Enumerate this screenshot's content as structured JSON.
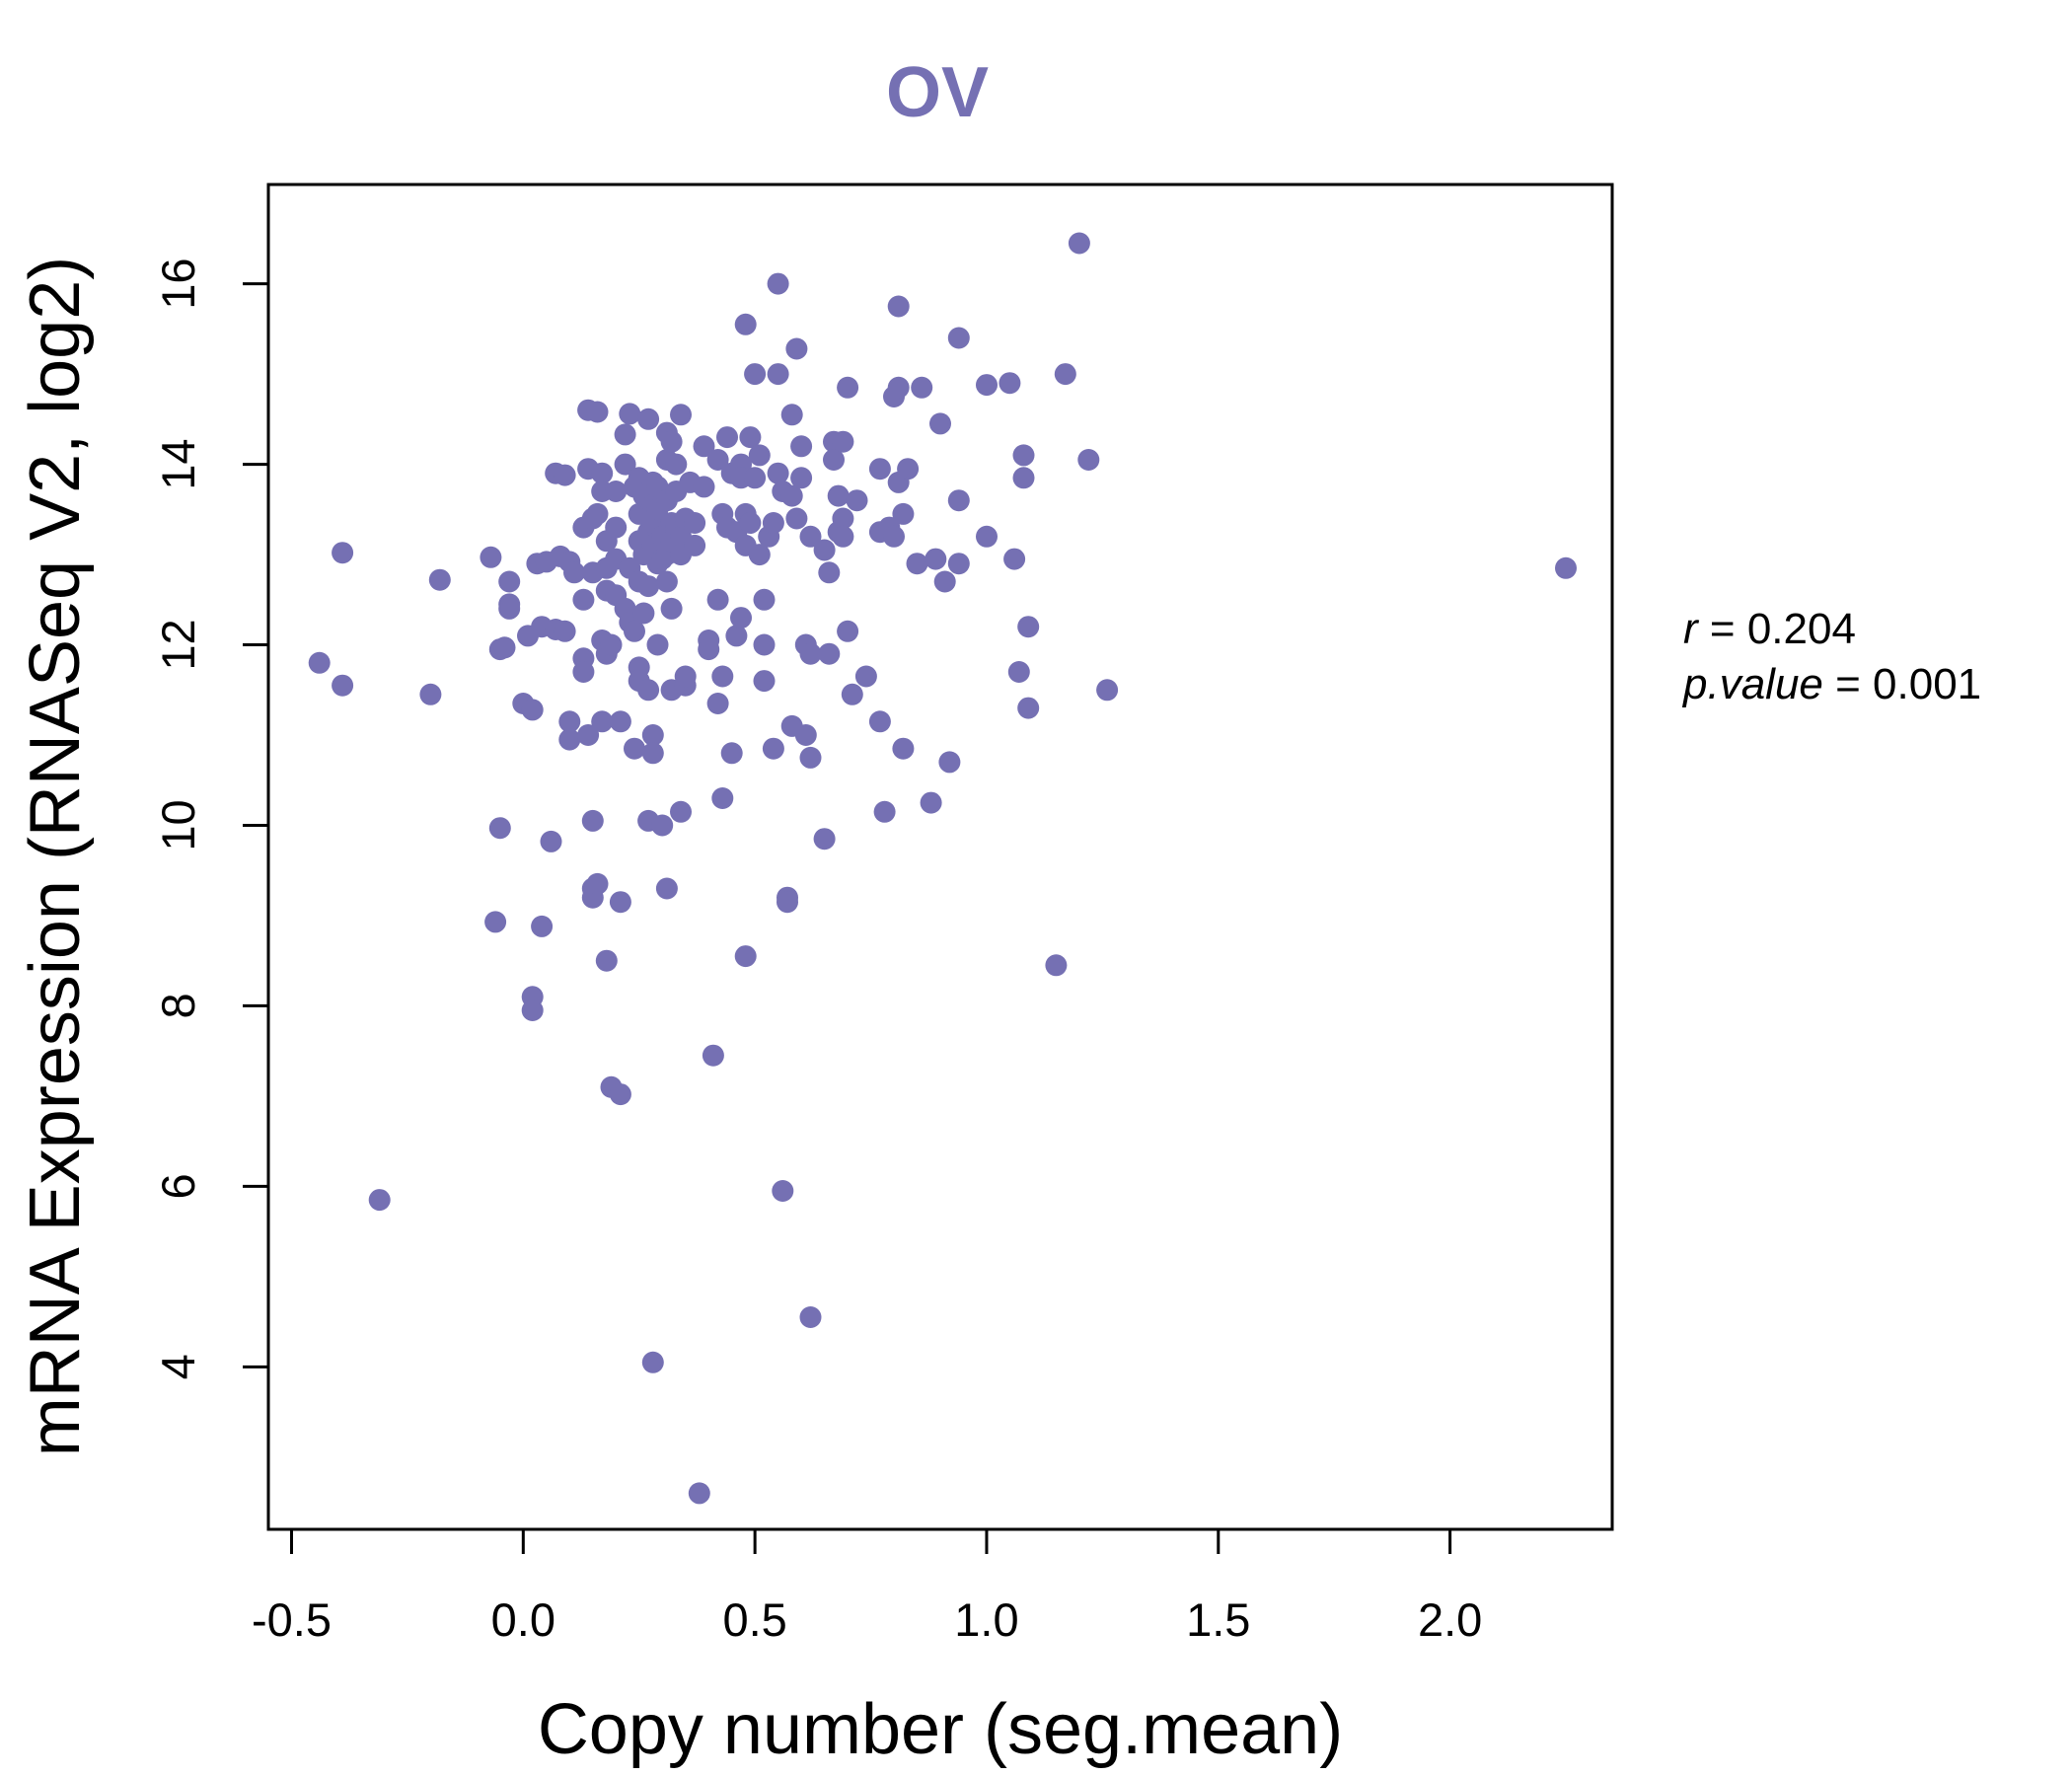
{
  "chart_data": {
    "type": "scatter",
    "title": "OV",
    "xlabel": "Copy number (seg.mean)",
    "ylabel": "mRNA Expression (RNASeq V2, log2)",
    "xlim": [
      -0.55,
      2.35
    ],
    "ylim": [
      2.2,
      17.1
    ],
    "xticks": [
      -0.5,
      0.0,
      0.5,
      1.0,
      1.5,
      2.0
    ],
    "xtick_labels": [
      "-0.5",
      "0.0",
      "0.5",
      "1.0",
      "1.5",
      "2.0"
    ],
    "yticks": [
      4,
      6,
      8,
      10,
      12,
      14,
      16
    ],
    "ytick_labels": [
      "4",
      "6",
      "8",
      "10",
      "12",
      "14",
      "16"
    ],
    "point_color": "#7570b3",
    "stats": {
      "r_label": "r",
      "r_value": "0.204",
      "p_label": "p.value",
      "p_value": "0.001"
    },
    "points": [
      [
        -0.44,
        11.8
      ],
      [
        -0.39,
        11.55
      ],
      [
        -0.39,
        13.02
      ],
      [
        -0.31,
        5.85
      ],
      [
        -0.2,
        11.45
      ],
      [
        -0.18,
        12.72
      ],
      [
        -0.07,
        12.97
      ],
      [
        -0.06,
        8.93
      ],
      [
        -0.05,
        11.95
      ],
      [
        -0.05,
        9.97
      ],
      [
        -0.04,
        11.97
      ],
      [
        -0.03,
        12.45
      ],
      [
        -0.03,
        12.4
      ],
      [
        -0.03,
        12.7
      ],
      [
        0.0,
        11.35
      ],
      [
        0.01,
        12.1
      ],
      [
        0.02,
        8.1
      ],
      [
        0.02,
        7.95
      ],
      [
        0.02,
        11.28
      ],
      [
        0.03,
        12.9
      ],
      [
        0.04,
        12.2
      ],
      [
        0.04,
        8.88
      ],
      [
        0.05,
        12.92
      ],
      [
        0.06,
        9.82
      ],
      [
        0.07,
        13.9
      ],
      [
        0.07,
        12.17
      ],
      [
        0.08,
        12.98
      ],
      [
        0.09,
        13.88
      ],
      [
        0.09,
        12.15
      ],
      [
        0.1,
        12.92
      ],
      [
        0.1,
        10.95
      ],
      [
        0.1,
        11.15
      ],
      [
        0.11,
        12.8
      ],
      [
        0.13,
        11.85
      ],
      [
        0.13,
        11.7
      ],
      [
        0.13,
        12.5
      ],
      [
        0.13,
        13.3
      ],
      [
        0.14,
        14.6
      ],
      [
        0.14,
        13.95
      ],
      [
        0.14,
        11.0
      ],
      [
        0.15,
        10.05
      ],
      [
        0.15,
        9.3
      ],
      [
        0.15,
        9.2
      ],
      [
        0.15,
        13.4
      ],
      [
        0.15,
        12.8
      ],
      [
        0.16,
        14.58
      ],
      [
        0.16,
        13.45
      ],
      [
        0.16,
        9.35
      ],
      [
        0.17,
        13.9
      ],
      [
        0.17,
        13.7
      ],
      [
        0.17,
        12.05
      ],
      [
        0.17,
        11.15
      ],
      [
        0.18,
        13.15
      ],
      [
        0.18,
        12.85
      ],
      [
        0.18,
        12.6
      ],
      [
        0.18,
        11.9
      ],
      [
        0.18,
        8.5
      ],
      [
        0.19,
        7.1
      ],
      [
        0.19,
        12.0
      ],
      [
        0.2,
        13.7
      ],
      [
        0.2,
        13.3
      ],
      [
        0.2,
        12.95
      ],
      [
        0.2,
        12.55
      ],
      [
        0.21,
        9.15
      ],
      [
        0.21,
        7.02
      ],
      [
        0.21,
        11.15
      ],
      [
        0.22,
        14.33
      ],
      [
        0.22,
        12.4
      ],
      [
        0.22,
        14.0
      ],
      [
        0.23,
        14.56
      ],
      [
        0.23,
        12.85
      ],
      [
        0.23,
        12.25
      ],
      [
        0.24,
        12.15
      ],
      [
        0.24,
        13.75
      ],
      [
        0.24,
        10.85
      ],
      [
        0.25,
        13.85
      ],
      [
        0.25,
        13.45
      ],
      [
        0.25,
        13.15
      ],
      [
        0.25,
        12.7
      ],
      [
        0.25,
        11.75
      ],
      [
        0.25,
        11.6
      ],
      [
        0.26,
        13.65
      ],
      [
        0.26,
        12.35
      ],
      [
        0.26,
        13.0
      ],
      [
        0.27,
        14.5
      ],
      [
        0.27,
        13.25
      ],
      [
        0.27,
        12.65
      ],
      [
        0.27,
        11.5
      ],
      [
        0.27,
        10.05
      ],
      [
        0.28,
        13.8
      ],
      [
        0.28,
        13.55
      ],
      [
        0.28,
        13.35
      ],
      [
        0.28,
        13.1
      ],
      [
        0.28,
        11.0
      ],
      [
        0.28,
        10.8
      ],
      [
        0.29,
        13.5
      ],
      [
        0.29,
        12.9
      ],
      [
        0.29,
        12.0
      ],
      [
        0.29,
        13.75
      ],
      [
        0.3,
        13.2
      ],
      [
        0.3,
        12.95
      ],
      [
        0.3,
        10.0
      ],
      [
        0.31,
        14.35
      ],
      [
        0.31,
        14.05
      ],
      [
        0.31,
        13.6
      ],
      [
        0.31,
        13.0
      ],
      [
        0.31,
        12.7
      ],
      [
        0.31,
        9.3
      ],
      [
        0.32,
        14.25
      ],
      [
        0.32,
        13.35
      ],
      [
        0.32,
        13.15
      ],
      [
        0.32,
        12.4
      ],
      [
        0.32,
        11.5
      ],
      [
        0.33,
        14.0
      ],
      [
        0.33,
        13.7
      ],
      [
        0.33,
        13.3
      ],
      [
        0.34,
        14.55
      ],
      [
        0.34,
        13.2
      ],
      [
        0.34,
        13.0
      ],
      [
        0.34,
        10.15
      ],
      [
        0.35,
        13.4
      ],
      [
        0.35,
        11.55
      ],
      [
        0.35,
        11.65
      ],
      [
        0.36,
        13.8
      ],
      [
        0.37,
        13.35
      ],
      [
        0.37,
        13.1
      ],
      [
        0.39,
        14.2
      ],
      [
        0.39,
        13.75
      ],
      [
        0.4,
        12.05
      ],
      [
        0.4,
        11.95
      ],
      [
        0.41,
        7.45
      ],
      [
        0.42,
        14.05
      ],
      [
        0.42,
        12.5
      ],
      [
        0.42,
        11.35
      ],
      [
        0.43,
        10.3
      ],
      [
        0.43,
        11.65
      ],
      [
        0.43,
        13.45
      ],
      [
        0.44,
        14.3
      ],
      [
        0.44,
        13.3
      ],
      [
        0.45,
        13.9
      ],
      [
        0.45,
        10.8
      ],
      [
        0.46,
        13.25
      ],
      [
        0.46,
        12.1
      ],
      [
        0.47,
        14.0
      ],
      [
        0.47,
        13.85
      ],
      [
        0.47,
        12.3
      ],
      [
        0.48,
        13.45
      ],
      [
        0.48,
        13.1
      ],
      [
        0.48,
        8.55
      ],
      [
        0.48,
        15.55
      ],
      [
        0.49,
        14.3
      ],
      [
        0.49,
        13.35
      ],
      [
        0.5,
        13.85
      ],
      [
        0.5,
        15.0
      ],
      [
        0.51,
        14.1
      ],
      [
        0.51,
        13.0
      ],
      [
        0.52,
        12.0
      ],
      [
        0.52,
        11.6
      ],
      [
        0.52,
        12.5
      ],
      [
        0.53,
        13.2
      ],
      [
        0.54,
        13.35
      ],
      [
        0.54,
        10.85
      ],
      [
        0.55,
        16.0
      ],
      [
        0.55,
        15.0
      ],
      [
        0.55,
        13.9
      ],
      [
        0.56,
        13.7
      ],
      [
        0.56,
        5.95
      ],
      [
        0.57,
        9.2
      ],
      [
        0.57,
        9.15
      ],
      [
        0.58,
        14.55
      ],
      [
        0.58,
        13.65
      ],
      [
        0.58,
        11.1
      ],
      [
        0.59,
        15.28
      ],
      [
        0.59,
        13.4
      ],
      [
        0.6,
        14.2
      ],
      [
        0.6,
        13.85
      ],
      [
        0.61,
        11.0
      ],
      [
        0.61,
        12.0
      ],
      [
        0.62,
        11.9
      ],
      [
        0.62,
        13.2
      ],
      [
        0.62,
        10.75
      ],
      [
        0.62,
        4.55
      ],
      [
        0.65,
        13.05
      ],
      [
        0.65,
        9.85
      ],
      [
        0.66,
        12.8
      ],
      [
        0.66,
        11.9
      ],
      [
        0.67,
        14.25
      ],
      [
        0.67,
        14.05
      ],
      [
        0.68,
        13.65
      ],
      [
        0.68,
        13.25
      ],
      [
        0.69,
        14.25
      ],
      [
        0.69,
        13.4
      ],
      [
        0.69,
        13.2
      ],
      [
        0.7,
        14.85
      ],
      [
        0.7,
        12.15
      ],
      [
        0.71,
        11.45
      ],
      [
        0.72,
        13.6
      ],
      [
        0.74,
        11.65
      ],
      [
        0.77,
        13.95
      ],
      [
        0.77,
        13.25
      ],
      [
        0.77,
        11.15
      ],
      [
        0.78,
        10.15
      ],
      [
        0.79,
        13.3
      ],
      [
        0.8,
        14.75
      ],
      [
        0.8,
        13.2
      ],
      [
        0.81,
        15.75
      ],
      [
        0.81,
        14.85
      ],
      [
        0.81,
        13.8
      ],
      [
        0.82,
        13.45
      ],
      [
        0.82,
        10.85
      ],
      [
        0.83,
        13.95
      ],
      [
        0.85,
        12.9
      ],
      [
        0.86,
        14.85
      ],
      [
        0.88,
        10.25
      ],
      [
        0.89,
        12.95
      ],
      [
        0.9,
        14.45
      ],
      [
        0.91,
        12.7
      ],
      [
        0.92,
        10.7
      ],
      [
        0.94,
        15.4
      ],
      [
        0.94,
        13.6
      ],
      [
        0.94,
        12.9
      ],
      [
        1.0,
        14.88
      ],
      [
        1.0,
        13.2
      ],
      [
        1.05,
        14.9
      ],
      [
        1.06,
        12.95
      ],
      [
        1.07,
        11.7
      ],
      [
        1.08,
        14.1
      ],
      [
        1.08,
        13.85
      ],
      [
        1.09,
        12.2
      ],
      [
        1.09,
        11.3
      ],
      [
        1.15,
        8.45
      ],
      [
        1.17,
        15.0
      ],
      [
        1.2,
        16.45
      ],
      [
        1.22,
        14.05
      ],
      [
        1.26,
        11.5
      ],
      [
        2.25,
        12.85
      ],
      [
        0.38,
        2.6
      ],
      [
        0.28,
        4.05
      ]
    ]
  }
}
